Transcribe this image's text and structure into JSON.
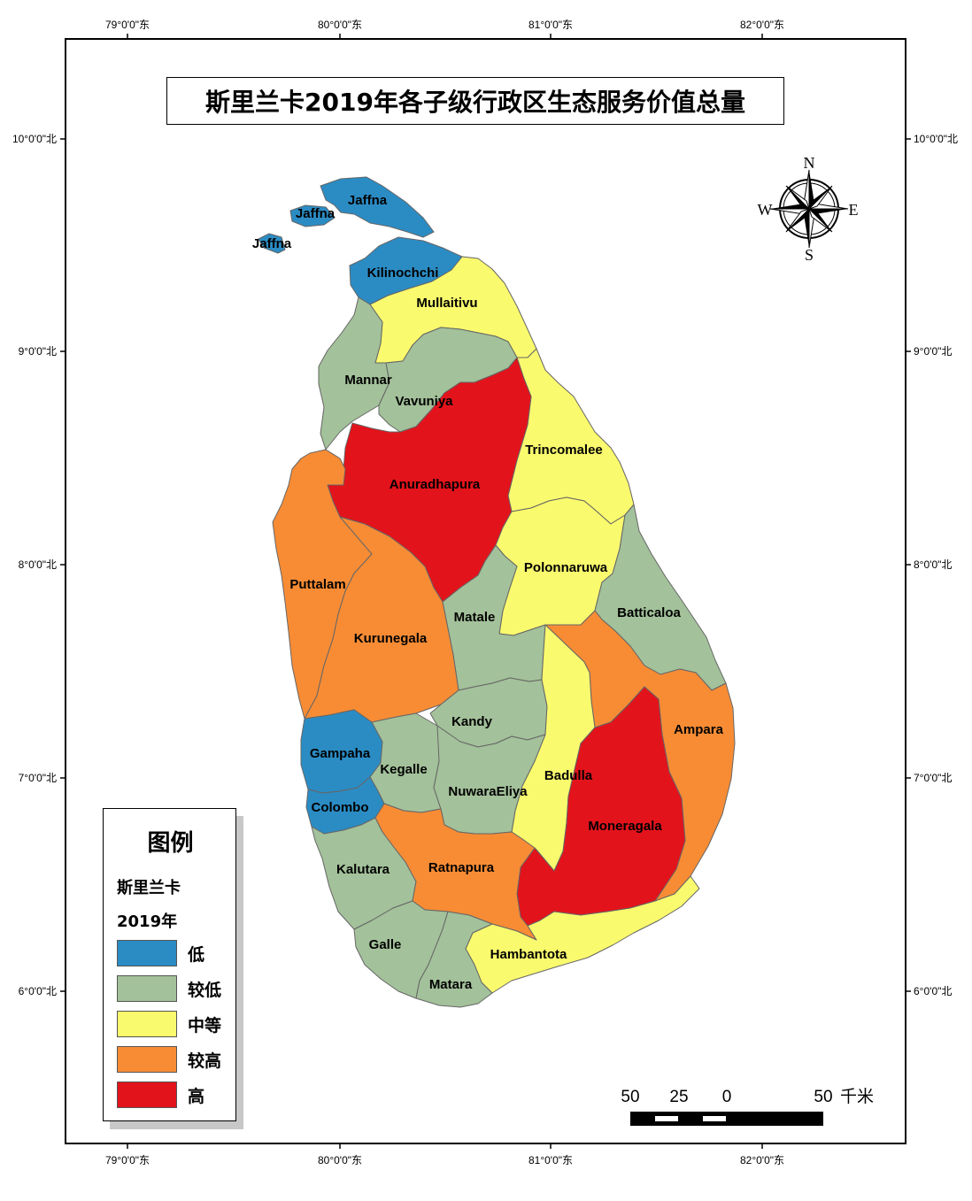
{
  "title": "斯里兰卡2019年各子级行政区生态服务价值总量",
  "axis": {
    "top_lon": [
      "79°0'0\"东",
      "80°0'0\"东",
      "81°0'0\"东",
      "82°0'0\"东"
    ],
    "bottom_lon": [
      "79°0'0\"东",
      "80°0'0\"东",
      "81°0'0\"东",
      "82°0'0\"东"
    ],
    "left_lat": [
      "10°0'0\"北",
      "9°0'0\"北",
      "8°0'0\"北",
      "7°0'0\"北",
      "6°0'0\"北"
    ],
    "right_lat": [
      "10°0'0\"北",
      "9°0'0\"北",
      "8°0'0\"北",
      "7°0'0\"北",
      "6°0'0\"北"
    ]
  },
  "colors": {
    "低": "#2b8cc4",
    "较低": "#a3c19a",
    "中等": "#fafa6e",
    "较高": "#f78c35",
    "高": "#e3131b"
  },
  "districts": [
    {
      "name": "Jaffna",
      "class": "低"
    },
    {
      "name": "Jaffna",
      "class": "低"
    },
    {
      "name": "Jaffna",
      "class": "低"
    },
    {
      "name": "Kilinochchi",
      "class": "低"
    },
    {
      "name": "Mullaitivu",
      "class": "中等"
    },
    {
      "name": "Mannar",
      "class": "较低"
    },
    {
      "name": "Vavuniya",
      "class": "较低"
    },
    {
      "name": "Trincomalee",
      "class": "中等"
    },
    {
      "name": "Anuradhapura",
      "class": "高"
    },
    {
      "name": "Puttalam",
      "class": "较高"
    },
    {
      "name": "Polonnaruwa",
      "class": "中等"
    },
    {
      "name": "Batticaloa",
      "class": "较低"
    },
    {
      "name": "Matale",
      "class": "较低"
    },
    {
      "name": "Kurunegala",
      "class": "较高"
    },
    {
      "name": "Kandy",
      "class": "较低"
    },
    {
      "name": "Ampara",
      "class": "较高"
    },
    {
      "name": "Gampaha",
      "class": "低"
    },
    {
      "name": "Kegalle",
      "class": "较低"
    },
    {
      "name": "Badulla",
      "class": "中等"
    },
    {
      "name": "NuwaraEliya",
      "class": "较低"
    },
    {
      "name": "Colombo",
      "class": "低"
    },
    {
      "name": "Moneragala",
      "class": "高"
    },
    {
      "name": "Kalutara",
      "class": "较低"
    },
    {
      "name": "Ratnapura",
      "class": "较高"
    },
    {
      "name": "Hambantota",
      "class": "中等"
    },
    {
      "name": "Galle",
      "class": "较低"
    },
    {
      "name": "Matara",
      "class": "较低"
    }
  ],
  "legend": {
    "title": "图例",
    "country": "斯里兰卡",
    "year": "2019年",
    "items": [
      "低",
      "较低",
      "中等",
      "较高",
      "高"
    ]
  },
  "compass": {
    "n": "N",
    "s": "S",
    "e": "E",
    "w": "W"
  },
  "scalebar": {
    "labels": [
      "50",
      "25",
      "0",
      "50"
    ],
    "unit": "千米"
  }
}
